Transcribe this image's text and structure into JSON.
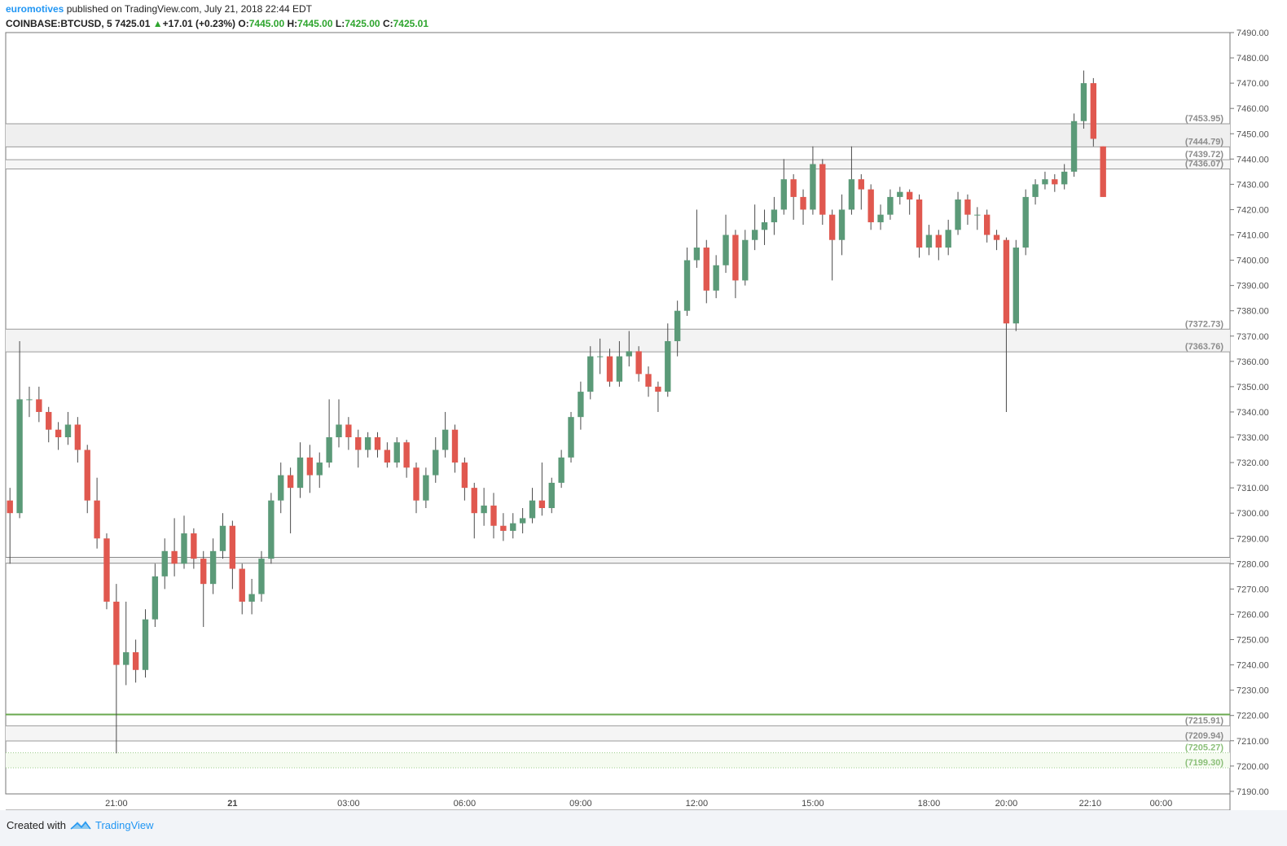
{
  "header": {
    "author": "euromotives",
    "published": "published on TradingView.com, July 21, 2018 22:44 EDT",
    "symbol": "COINBASE:BTCUSD, 5",
    "price": "7425.01",
    "change": "+17.01 (+0.23%)",
    "o_label": "O:",
    "o_value": "7445.00",
    "h_label": "H:",
    "h_value": "7445.00",
    "l_label": "L:",
    "l_value": "7425.00",
    "c_label": "C:",
    "c_value": "7425.01"
  },
  "footer": {
    "created": "Created with",
    "brand": "TradingView"
  },
  "chart_data": {
    "type": "candlestick",
    "up_color": "#5b9a78",
    "down_color": "#e0584f",
    "wick_color": "#4a4a4a",
    "xlim": [
      18.14,
      49.78
    ],
    "ylim": [
      7189,
      7490
    ],
    "xticks": [
      {
        "value": 21,
        "label": "21:00"
      },
      {
        "value": 24,
        "label": "21"
      },
      {
        "value": 27,
        "label": "03:00"
      },
      {
        "value": 30,
        "label": "06:00"
      },
      {
        "value": 33,
        "label": "09:00"
      },
      {
        "value": 36,
        "label": "12:00"
      },
      {
        "value": 39,
        "label": "15:00"
      },
      {
        "value": 42,
        "label": "18:00"
      },
      {
        "value": 44,
        "label": "20:00"
      },
      {
        "value": 46.1667,
        "label": "22:10"
      },
      {
        "value": 48,
        "label": "00:00"
      }
    ],
    "yticks": [
      {
        "value": 7190,
        "label": "7190.00"
      },
      {
        "value": 7200,
        "label": "7200.00"
      },
      {
        "value": 7210,
        "label": "7210.00"
      },
      {
        "value": 7220,
        "label": "7220.00"
      },
      {
        "value": 7230,
        "label": "7230.00"
      },
      {
        "value": 7240,
        "label": "7240.00"
      },
      {
        "value": 7250,
        "label": "7250.00"
      },
      {
        "value": 7260,
        "label": "7260.00"
      },
      {
        "value": 7270,
        "label": "7270.00"
      },
      {
        "value": 7280,
        "label": "7280.00"
      },
      {
        "value": 7290,
        "label": "7290.00"
      },
      {
        "value": 7300,
        "label": "7300.00"
      },
      {
        "value": 7310,
        "label": "7310.00"
      },
      {
        "value": 7320,
        "label": "7320.00"
      },
      {
        "value": 7330,
        "label": "7330.00"
      },
      {
        "value": 7340,
        "label": "7340.00"
      },
      {
        "value": 7350,
        "label": "7350.00"
      },
      {
        "value": 7360,
        "label": "7360.00"
      },
      {
        "value": 7370,
        "label": "7370.00"
      },
      {
        "value": 7380,
        "label": "7380.00"
      },
      {
        "value": 7390,
        "label": "7390.00"
      },
      {
        "value": 7400,
        "label": "7400.00"
      },
      {
        "value": 7410,
        "label": "7410.00"
      },
      {
        "value": 7420,
        "label": "7420.00"
      },
      {
        "value": 7430,
        "label": "7430.00"
      },
      {
        "value": 7440,
        "label": "7440.00"
      },
      {
        "value": 7450,
        "label": "7450.00"
      },
      {
        "value": 7460,
        "label": "7460.00"
      },
      {
        "value": 7470,
        "label": "7470.00"
      },
      {
        "value": 7480,
        "label": "7480.00"
      },
      {
        "value": 7490,
        "label": "7490.00"
      }
    ],
    "bands": [
      {
        "from": {
          "value": 7453.95,
          "label": "(7453.95)"
        },
        "to": {
          "value": 7444.79,
          "label": "(7444.79)"
        },
        "fill": "#efefef",
        "line_color": "#9a9a9a",
        "text_color": "#8c8c8c",
        "line_style": "solid"
      },
      {
        "from": {
          "value": 7439.72,
          "label": "(7439.72)"
        },
        "to": {
          "value": 7436.07,
          "label": "(7436.07)"
        },
        "fill": "#f6f6f6",
        "line_color": "#9a9a9a",
        "text_color": "#8c8c8c",
        "line_style": "solid"
      },
      {
        "from": {
          "value": 7372.73,
          "label": "(7372.73)"
        },
        "to": {
          "value": 7363.76,
          "label": "(7363.76)"
        },
        "fill": "#f3f3f3",
        "line_color": "#9a9a9a",
        "text_color": "#8c8c8c",
        "line_style": "solid"
      },
      {
        "from": 7282.5,
        "to": 7280.2,
        "fill": "#f3f3f3",
        "line_color": "#8a8a8a",
        "line_style": "solid"
      },
      {
        "from": {
          "value": 7215.91,
          "label": "(7215.91)"
        },
        "to": {
          "value": 7209.94,
          "label": "(7209.94)"
        },
        "fill": "#f5f5f5",
        "line_color": "#9a9a9a",
        "text_color": "#8c8c8c",
        "line_style": "solid"
      },
      {
        "from": {
          "value": 7205.27,
          "label": "(7205.27)"
        },
        "to": {
          "value": 7199.3,
          "label": "(7199.30)"
        },
        "fill": "#f5fbf0",
        "line_color": "#9ccc8c",
        "text_color": "#8cc07a",
        "line_style": "dotted"
      }
    ],
    "lines": [
      {
        "value": 7220.4,
        "color": "#6aa84f"
      }
    ],
    "x": [
      18.25,
      18.5,
      18.75,
      19,
      19.25,
      19.5,
      19.75,
      20,
      20.25,
      20.5,
      20.75,
      21,
      21.25,
      21.5,
      21.75,
      22,
      22.25,
      22.5,
      22.75,
      23,
      23.25,
      23.5,
      23.75,
      24,
      24.25,
      24.5,
      24.75,
      25,
      25.25,
      25.5,
      25.75,
      26,
      26.25,
      26.5,
      26.75,
      27,
      27.25,
      27.5,
      27.75,
      28,
      28.25,
      28.5,
      28.75,
      29,
      29.25,
      29.5,
      29.75,
      30,
      30.25,
      30.5,
      30.75,
      31,
      31.25,
      31.5,
      31.75,
      32,
      32.25,
      32.5,
      32.75,
      33,
      33.25,
      33.5,
      33.75,
      34,
      34.25,
      34.5,
      34.75,
      35,
      35.25,
      35.5,
      35.75,
      36,
      36.25,
      36.5,
      36.75,
      37,
      37.25,
      37.5,
      37.75,
      38,
      38.25,
      38.5,
      38.75,
      39,
      39.25,
      39.5,
      39.75,
      40,
      40.25,
      40.5,
      40.75,
      41,
      41.25,
      41.5,
      41.75,
      42,
      42.25,
      42.5,
      42.75,
      43,
      43.25,
      43.5,
      43.75,
      44,
      44.25,
      44.5,
      44.75,
      45,
      45.25,
      45.5,
      45.75,
      46,
      46.25,
      46.5
    ],
    "open": [
      7305,
      7300,
      7345,
      7345,
      7340,
      7333,
      7330,
      7335,
      7325,
      7305,
      7290,
      7265,
      7240,
      7245,
      7238,
      7258,
      7275,
      7285,
      7280,
      7292,
      7282,
      7272,
      7285,
      7295,
      7278,
      7265,
      7268,
      7282,
      7305,
      7315,
      7310,
      7322,
      7315,
      7320,
      7330,
      7335,
      7330,
      7325,
      7330,
      7325,
      7320,
      7328,
      7318,
      7305,
      7315,
      7325,
      7333,
      7320,
      7310,
      7300,
      7303,
      7295,
      7293,
      7296,
      7298,
      7305,
      7302,
      7312,
      7322,
      7338,
      7348,
      7362,
      7362,
      7352,
      7362,
      7364,
      7355,
      7350,
      7348,
      7368,
      7380,
      7400,
      7405,
      7388,
      7398,
      7410,
      7392,
      7408,
      7412,
      7415,
      7420,
      7432,
      7425,
      7420,
      7438,
      7418,
      7408,
      7420,
      7432,
      7428,
      7415,
      7418,
      7425,
      7427,
      7424,
      7405,
      7410,
      7405,
      7412,
      7424,
      7418,
      7418,
      7410,
      7408,
      7375,
      7405,
      7425,
      7430,
      7432,
      7430,
      7435,
      7455,
      7470,
      7445
    ],
    "high": [
      7310,
      7368,
      7350,
      7350,
      7342,
      7336,
      7340,
      7338,
      7327,
      7314,
      7292,
      7272,
      7265,
      7250,
      7262,
      7280,
      7290,
      7298,
      7299,
      7294,
      7285,
      7290,
      7300,
      7297,
      7280,
      7274,
      7285,
      7308,
      7320,
      7318,
      7328,
      7327,
      7324,
      7345,
      7345,
      7338,
      7333,
      7332,
      7332,
      7328,
      7330,
      7329,
      7320,
      7318,
      7330,
      7340,
      7335,
      7322,
      7312,
      7310,
      7308,
      7300,
      7300,
      7302,
      7310,
      7320,
      7314,
      7325,
      7340,
      7352,
      7366,
      7369,
      7365,
      7368,
      7372,
      7366,
      7358,
      7352,
      7375,
      7384,
      7405,
      7420,
      7408,
      7402,
      7418,
      7412,
      7412,
      7422,
      7420,
      7425,
      7440,
      7434,
      7428,
      7445,
      7440,
      7420,
      7426,
      7445,
      7434,
      7430,
      7422,
      7428,
      7429,
      7428,
      7426,
      7414,
      7412,
      7416,
      7427,
      7426,
      7421,
      7420,
      7412,
      7409,
      7408,
      7428,
      7432,
      7435,
      7434,
      7438,
      7458,
      7475,
      7472,
      7445
    ],
    "low": [
      7280,
      7298,
      7338,
      7336,
      7328,
      7325,
      7327,
      7320,
      7300,
      7286,
      7262,
      7205,
      7232,
      7233,
      7235,
      7255,
      7270,
      7275,
      7278,
      7278,
      7255,
      7268,
      7282,
      7270,
      7260,
      7260,
      7265,
      7280,
      7300,
      7292,
      7306,
      7308,
      7310,
      7318,
      7326,
      7325,
      7318,
      7322,
      7322,
      7318,
      7318,
      7314,
      7300,
      7302,
      7312,
      7322,
      7316,
      7305,
      7290,
      7295,
      7290,
      7289,
      7290,
      7292,
      7296,
      7299,
      7300,
      7310,
      7320,
      7333,
      7345,
      7355,
      7350,
      7350,
      7358,
      7352,
      7346,
      7340,
      7346,
      7362,
      7378,
      7397,
      7383,
      7385,
      7395,
      7385,
      7390,
      7404,
      7406,
      7410,
      7418,
      7416,
      7414,
      7418,
      7414,
      7392,
      7402,
      7418,
      7420,
      7412,
      7412,
      7416,
      7422,
      7418,
      7401,
      7402,
      7400,
      7402,
      7410,
      7414,
      7412,
      7407,
      7404,
      7340,
      7372,
      7402,
      7422,
      7428,
      7427,
      7428,
      7433,
      7452,
      7445,
      7425
    ],
    "close": [
      7300,
      7345,
      7345,
      7340,
      7333,
      7330,
      7335,
      7325,
      7305,
      7290,
      7265,
      7240,
      7245,
      7238,
      7258,
      7275,
      7285,
      7280,
      7292,
      7282,
      7272,
      7285,
      7295,
      7278,
      7265,
      7268,
      7282,
      7305,
      7315,
      7310,
      7322,
      7315,
      7320,
      7330,
      7335,
      7330,
      7325,
      7330,
      7325,
      7320,
      7328,
      7318,
      7305,
      7315,
      7325,
      7333,
      7320,
      7310,
      7300,
      7303,
      7295,
      7293,
      7296,
      7298,
      7305,
      7302,
      7312,
      7322,
      7338,
      7348,
      7362,
      7362,
      7352,
      7362,
      7364,
      7355,
      7350,
      7348,
      7368,
      7380,
      7400,
      7405,
      7388,
      7398,
      7410,
      7392,
      7408,
      7412,
      7415,
      7420,
      7432,
      7425,
      7420,
      7438,
      7418,
      7408,
      7420,
      7432,
      7428,
      7415,
      7418,
      7425,
      7427,
      7424,
      7405,
      7410,
      7405,
      7412,
      7424,
      7418,
      7418,
      7410,
      7408,
      7375,
      7405,
      7425,
      7430,
      7432,
      7430,
      7435,
      7455,
      7470,
      7448,
      7425
    ]
  }
}
